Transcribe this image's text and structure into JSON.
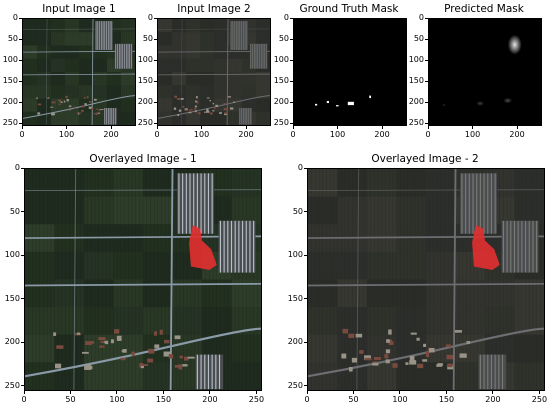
{
  "figure": {
    "panels": [
      {
        "id": "p1",
        "title": "Input Image 1",
        "kind": "satellite",
        "variant": "a",
        "xticks": [
          "0",
          "100",
          "200"
        ],
        "yticks": [
          "0",
          "50",
          "100",
          "150",
          "200",
          "250"
        ]
      },
      {
        "id": "p2",
        "title": "Input Image 2",
        "kind": "satellite",
        "variant": "b",
        "xticks": [
          "0",
          "100",
          "200"
        ],
        "yticks": [
          "0",
          "50",
          "100",
          "150",
          "200",
          "250"
        ]
      },
      {
        "id": "p3",
        "title": "Ground Truth Mask",
        "kind": "mask_gt",
        "xticks": [
          "0",
          "100",
          "200"
        ],
        "yticks": [
          "0",
          "50",
          "100",
          "150",
          "200",
          "250"
        ]
      },
      {
        "id": "p4",
        "title": "Predicted Mask",
        "kind": "mask_pred",
        "xticks": [
          "0",
          "100",
          "200"
        ],
        "yticks": [
          "0",
          "50",
          "100",
          "150",
          "200",
          "250"
        ]
      },
      {
        "id": "p5",
        "title": "Overlayed Image - 1",
        "kind": "overlay",
        "variant": "a",
        "xticks": [
          "0",
          "50",
          "100",
          "150",
          "200",
          "250"
        ],
        "yticks": [
          "0",
          "50",
          "100",
          "150",
          "200",
          "250"
        ]
      },
      {
        "id": "p6",
        "title": "Overlayed Image - 2",
        "kind": "overlay",
        "variant": "b",
        "xticks": [
          "0",
          "50",
          "100",
          "150",
          "200",
          "250"
        ],
        "yticks": [
          "0",
          "50",
          "100",
          "150",
          "200",
          "250"
        ]
      }
    ]
  },
  "chart_data": {
    "type": "heatmap",
    "xlim": [
      0,
      256
    ],
    "ylim": [
      256,
      0
    ],
    "overlay_color": "#e03030",
    "ground_truth_regions": [
      {
        "x": 48,
        "y": 205,
        "w": 5,
        "h": 4
      },
      {
        "x": 75,
        "y": 198,
        "w": 5,
        "h": 5
      },
      {
        "x": 96,
        "y": 208,
        "w": 6,
        "h": 3
      },
      {
        "x": 123,
        "y": 200,
        "w": 14,
        "h": 8
      },
      {
        "x": 172,
        "y": 185,
        "w": 4,
        "h": 6
      }
    ],
    "predicted_regions": [
      {
        "x": 180,
        "y": 38,
        "w": 32,
        "h": 48,
        "intensity": 0.9
      },
      {
        "x": 170,
        "y": 190,
        "w": 20,
        "h": 14,
        "intensity": 0.3
      },
      {
        "x": 108,
        "y": 198,
        "w": 18,
        "h": 12,
        "intensity": 0.25
      },
      {
        "x": 30,
        "y": 205,
        "w": 8,
        "h": 6,
        "intensity": 0.2
      }
    ],
    "overlay_region": {
      "x": 178,
      "y": 65,
      "w": 30,
      "h": 52
    }
  }
}
